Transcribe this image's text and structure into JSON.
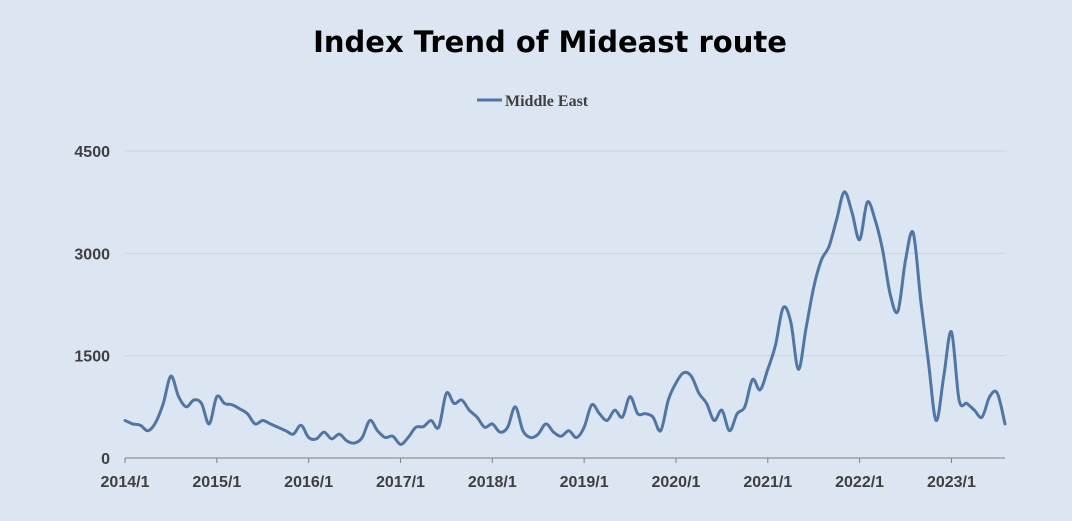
{
  "chart_data": {
    "type": "line",
    "title": "Index Trend of Mideast route",
    "xlabel": "",
    "ylabel": "",
    "ylim": [
      0,
      4500
    ],
    "yticks": [
      0,
      1500,
      3000,
      4500
    ],
    "xticks": [
      "2014/1",
      "2015/1",
      "2016/1",
      "2017/1",
      "2018/1",
      "2019/1",
      "2020/1",
      "2021/1",
      "2022/1",
      "2023/1"
    ],
    "x_range": [
      "2014-01",
      "2023-08"
    ],
    "grid": "horizontal",
    "legend_position": "top-center",
    "line_color": "#4f76a4",
    "series": [
      {
        "name": "Middle East",
        "points": [
          [
            "2014-01",
            550
          ],
          [
            "2014-02",
            500
          ],
          [
            "2014-03",
            480
          ],
          [
            "2014-04",
            400
          ],
          [
            "2014-05",
            520
          ],
          [
            "2014-06",
            800
          ],
          [
            "2014-07",
            1200
          ],
          [
            "2014-08",
            900
          ],
          [
            "2014-09",
            750
          ],
          [
            "2014-10",
            850
          ],
          [
            "2014-11",
            800
          ],
          [
            "2014-12",
            500
          ],
          [
            "2015-01",
            900
          ],
          [
            "2015-02",
            800
          ],
          [
            "2015-03",
            780
          ],
          [
            "2015-04",
            720
          ],
          [
            "2015-05",
            650
          ],
          [
            "2015-06",
            500
          ],
          [
            "2015-07",
            550
          ],
          [
            "2015-08",
            500
          ],
          [
            "2015-09",
            450
          ],
          [
            "2015-10",
            400
          ],
          [
            "2015-11",
            350
          ],
          [
            "2015-12",
            480
          ],
          [
            "2016-01",
            300
          ],
          [
            "2016-02",
            280
          ],
          [
            "2016-03",
            380
          ],
          [
            "2016-04",
            280
          ],
          [
            "2016-05",
            350
          ],
          [
            "2016-06",
            250
          ],
          [
            "2016-07",
            220
          ],
          [
            "2016-08",
            300
          ],
          [
            "2016-09",
            550
          ],
          [
            "2016-10",
            400
          ],
          [
            "2016-11",
            300
          ],
          [
            "2016-12",
            320
          ],
          [
            "2017-01",
            200
          ],
          [
            "2017-02",
            300
          ],
          [
            "2017-03",
            450
          ],
          [
            "2017-04",
            460
          ],
          [
            "2017-05",
            550
          ],
          [
            "2017-06",
            450
          ],
          [
            "2017-07",
            950
          ],
          [
            "2017-08",
            800
          ],
          [
            "2017-09",
            850
          ],
          [
            "2017-10",
            700
          ],
          [
            "2017-11",
            600
          ],
          [
            "2017-12",
            450
          ],
          [
            "2018-01",
            500
          ],
          [
            "2018-02",
            380
          ],
          [
            "2018-03",
            450
          ],
          [
            "2018-04",
            750
          ],
          [
            "2018-05",
            400
          ],
          [
            "2018-06",
            300
          ],
          [
            "2018-07",
            350
          ],
          [
            "2018-08",
            500
          ],
          [
            "2018-09",
            380
          ],
          [
            "2018-10",
            320
          ],
          [
            "2018-11",
            400
          ],
          [
            "2018-12",
            300
          ],
          [
            "2019-01",
            450
          ],
          [
            "2019-02",
            780
          ],
          [
            "2019-03",
            650
          ],
          [
            "2019-04",
            550
          ],
          [
            "2019-05",
            700
          ],
          [
            "2019-06",
            600
          ],
          [
            "2019-07",
            900
          ],
          [
            "2019-08",
            650
          ],
          [
            "2019-09",
            650
          ],
          [
            "2019-10",
            600
          ],
          [
            "2019-11",
            400
          ],
          [
            "2019-12",
            850
          ],
          [
            "2020-01",
            1100
          ],
          [
            "2020-02",
            1250
          ],
          [
            "2020-03",
            1200
          ],
          [
            "2020-04",
            950
          ],
          [
            "2020-05",
            800
          ],
          [
            "2020-06",
            550
          ],
          [
            "2020-07",
            700
          ],
          [
            "2020-08",
            400
          ],
          [
            "2020-09",
            650
          ],
          [
            "2020-10",
            750
          ],
          [
            "2020-11",
            1150
          ],
          [
            "2020-12",
            1000
          ],
          [
            "2021-01",
            1300
          ],
          [
            "2021-02",
            1650
          ],
          [
            "2021-03",
            2200
          ],
          [
            "2021-04",
            2000
          ],
          [
            "2021-05",
            1300
          ],
          [
            "2021-06",
            1900
          ],
          [
            "2021-07",
            2500
          ],
          [
            "2021-08",
            2900
          ],
          [
            "2021-09",
            3100
          ],
          [
            "2021-10",
            3500
          ],
          [
            "2021-11",
            3900
          ],
          [
            "2021-12",
            3600
          ],
          [
            "2022-01",
            3200
          ],
          [
            "2022-02",
            3750
          ],
          [
            "2022-03",
            3500
          ],
          [
            "2022-04",
            3050
          ],
          [
            "2022-05",
            2400
          ],
          [
            "2022-06",
            2150
          ],
          [
            "2022-07",
            2900
          ],
          [
            "2022-08",
            3300
          ],
          [
            "2022-09",
            2300
          ],
          [
            "2022-10",
            1400
          ],
          [
            "2022-11",
            550
          ],
          [
            "2022-12",
            1200
          ],
          [
            "2023-01",
            1850
          ],
          [
            "2023-02",
            850
          ],
          [
            "2023-03",
            800
          ],
          [
            "2023-04",
            700
          ],
          [
            "2023-05",
            600
          ],
          [
            "2023-06",
            900
          ],
          [
            "2023-07",
            950
          ],
          [
            "2023-08",
            500
          ]
        ]
      }
    ]
  }
}
